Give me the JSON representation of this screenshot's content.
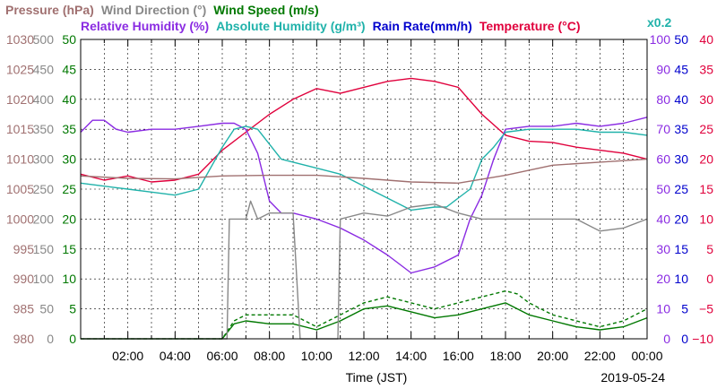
{
  "chart_data": {
    "type": "line",
    "date_label": "2019-05-24",
    "xlabel": "Time (JST)",
    "x_ticks": [
      "02:00",
      "04:00",
      "06:00",
      "08:00",
      "10:00",
      "12:00",
      "14:00",
      "16:00",
      "18:00",
      "20:00",
      "22:00",
      "00:00"
    ],
    "xlim_hours": [
      0,
      24
    ],
    "legend_top": [
      {
        "text": "Pressure (hPa)",
        "color": "#a07070"
      },
      {
        "text": "Wind Direction (°)",
        "color": "#888888"
      },
      {
        "text": "Wind Speed (m/s)",
        "color": "#007800"
      }
    ],
    "legend_bottom": [
      {
        "text": "Relative Humidity (%)",
        "color": "#8a2be2"
      },
      {
        "text": "Absolute Humidity (g/m³)",
        "color": "#20b2aa"
      },
      {
        "text": "Rain Rate(mm/h)",
        "color": "#0000cd"
      },
      {
        "text": "Temperature (°C)",
        "color": "#e0003c"
      }
    ],
    "abs_humidity_scale_note": "x0.2",
    "axes": {
      "pressure": {
        "range": [
          980,
          1030
        ],
        "ticks": [
          "1030",
          "1025",
          "1020",
          "1015",
          "1010",
          "1005",
          "1000",
          "995",
          "990",
          "985",
          "980"
        ],
        "color": "#a07070"
      },
      "wind_direction": {
        "range": [
          0,
          500
        ],
        "ticks": [
          "500",
          "450",
          "400",
          "350",
          "300",
          "250",
          "200",
          "150",
          "100",
          "50",
          "0"
        ],
        "color": "#888888"
      },
      "wind_speed": {
        "range": [
          0,
          50
        ],
        "ticks": [
          "50",
          "45",
          "40",
          "35",
          "30",
          "25",
          "20",
          "15",
          "10",
          "5",
          "0"
        ],
        "color": "#007800"
      },
      "relative_humidity": {
        "range": [
          0,
          100
        ],
        "ticks": [
          "100",
          "90",
          "80",
          "70",
          "60",
          "50",
          "40",
          "30",
          "20",
          "10",
          "0"
        ],
        "color": "#8a2be2"
      },
      "rain_rate": {
        "range": [
          0,
          50
        ],
        "ticks": [
          "50",
          "45",
          "40",
          "35",
          "30",
          "25",
          "20",
          "15",
          "10",
          "5",
          "0"
        ],
        "color": "#0000cd"
      },
      "temperature": {
        "range": [
          -10,
          40
        ],
        "ticks": [
          "40",
          "35",
          "30",
          "25",
          "20",
          "15",
          "10",
          "5",
          "0",
          "−5",
          "−10"
        ],
        "color": "#e0003c"
      }
    },
    "series": [
      {
        "key": "temperature",
        "color": "#e0003c",
        "axis": "temperature",
        "hours": [
          0,
          1,
          2,
          3,
          4,
          5,
          6,
          7,
          8,
          9,
          10,
          11,
          12,
          13,
          14,
          15,
          16,
          17,
          18,
          19,
          20,
          21,
          22,
          23,
          24
        ],
        "values": [
          17.5,
          16.5,
          17.2,
          16.2,
          16.5,
          17.5,
          21.5,
          24.5,
          27.5,
          30.0,
          31.8,
          31.0,
          32.0,
          33.0,
          33.5,
          33.0,
          32.0,
          27.5,
          24.0,
          23.0,
          22.8,
          22.0,
          21.5,
          21.0,
          20.0
        ]
      },
      {
        "key": "relative_humidity",
        "color": "#8a2be2",
        "axis": "relative_humidity",
        "hours": [
          0,
          0.5,
          1,
          1.5,
          2,
          3,
          4,
          5,
          6,
          6.5,
          7,
          7.5,
          8,
          8.5,
          9,
          10,
          11,
          12,
          13,
          14,
          15,
          16,
          16.5,
          17,
          17.5,
          18,
          19,
          20,
          21,
          22,
          23,
          24
        ],
        "values": [
          69,
          73,
          73,
          70,
          69,
          70,
          70,
          71,
          72,
          72,
          70,
          62,
          46,
          42,
          42,
          40,
          37,
          33,
          28,
          22,
          24,
          28,
          40,
          48,
          60,
          70,
          71,
          71,
          72,
          71,
          72,
          74
        ]
      },
      {
        "key": "absolute_humidity",
        "color": "#20b2aa",
        "axis": "relative_humidity",
        "hours": [
          0,
          1,
          2,
          3,
          4,
          5,
          6,
          6.5,
          7,
          7.5,
          8,
          8.5,
          9,
          10,
          11,
          12,
          13,
          14,
          15,
          15.5,
          16,
          16.5,
          17,
          17.5,
          18,
          19,
          20,
          21,
          22,
          23,
          24
        ],
        "values": [
          52,
          51,
          50,
          49,
          48,
          50,
          64,
          70,
          71,
          70,
          65,
          60,
          59,
          57,
          55,
          51,
          47,
          43,
          44,
          44,
          47,
          50,
          60,
          64,
          69,
          70,
          70,
          70,
          69,
          69,
          68
        ]
      },
      {
        "key": "pressure",
        "color": "#a07070",
        "axis": "pressure",
        "hours": [
          0,
          2,
          4,
          6,
          8,
          10,
          12,
          14,
          16,
          18,
          20,
          22,
          24
        ],
        "values": [
          1007.2,
          1006.8,
          1006.7,
          1007.2,
          1007.3,
          1007.3,
          1006.8,
          1006.2,
          1006.0,
          1007.3,
          1009.0,
          1009.5,
          1010.0
        ]
      },
      {
        "key": "wind_speed_avg",
        "color": "#007800",
        "axis": "wind_speed",
        "hours": [
          0,
          6,
          6.5,
          7,
          8,
          9,
          10,
          11,
          12,
          13,
          14,
          15,
          16,
          17,
          18,
          19,
          20,
          21,
          22,
          23,
          24
        ],
        "values": [
          0,
          0,
          2.5,
          3,
          2.5,
          2.5,
          1.5,
          3,
          5,
          5.5,
          4.5,
          3.5,
          4,
          5,
          6,
          4,
          3,
          2,
          1.5,
          2,
          3.5
        ]
      },
      {
        "key": "wind_speed_gust",
        "color": "#007800",
        "axis": "wind_speed",
        "dashed": true,
        "hours": [
          0,
          6,
          6.5,
          7,
          8,
          9,
          10,
          11,
          12,
          13,
          14,
          15,
          16,
          17,
          18,
          18.5,
          19,
          20,
          21,
          22,
          23,
          24
        ],
        "values": [
          0,
          0,
          3,
          4,
          4,
          4,
          2,
          4,
          6,
          7,
          6,
          5,
          6,
          7,
          8,
          7.5,
          6,
          4,
          3,
          2,
          3,
          5
        ]
      },
      {
        "key": "wind_direction",
        "color": "#888888",
        "axis": "wind_direction",
        "hours": [
          0,
          6.2,
          6.3,
          7,
          7.2,
          7.5,
          8,
          9,
          9.3,
          9.4,
          10.5,
          10.9,
          11,
          12,
          13,
          14,
          15,
          16,
          17,
          18,
          19,
          20,
          21,
          22,
          23,
          24
        ],
        "values": [
          0,
          0,
          200,
          200,
          230,
          200,
          210,
          210,
          0,
          0,
          0,
          0,
          200,
          210,
          205,
          220,
          225,
          210,
          200,
          200,
          200,
          200,
          200,
          180,
          185,
          200
        ]
      }
    ]
  }
}
